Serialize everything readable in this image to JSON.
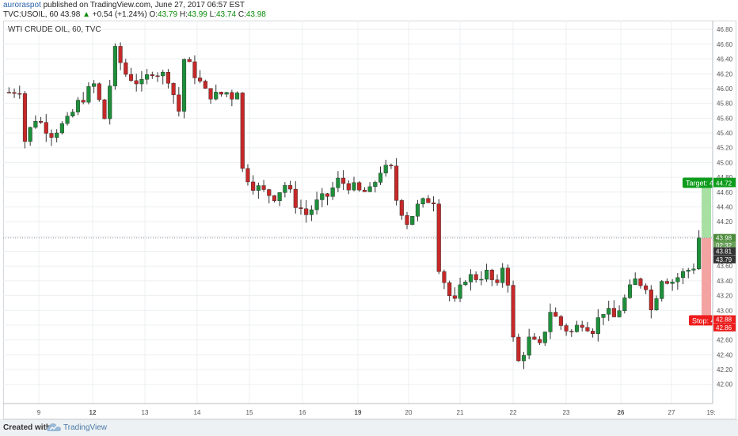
{
  "header": {
    "author": "auroraspot",
    "published_text": " published on TradingView.com, June 27, 2017 06:57 EST",
    "symbol": "TVC:USOIL, 60",
    "last": "43.98",
    "change_icon": "triangle-up-icon",
    "change": "+0.54 (+1.24%)",
    "open_label": "O:",
    "open": "43.79",
    "high_label": "H:",
    "high": "43.99",
    "low_label": "L:",
    "low": "43.74",
    "close_label": "C:",
    "close": "43.98"
  },
  "footer": {
    "created_with": "Created with",
    "brand": "TradingView",
    "logo_icon": "tradingview-cloud-icon"
  },
  "colors": {
    "up": "#1e8f3a",
    "down": "#c62828",
    "target_fill": "#a8e0a4",
    "stop_fill": "#f4a3a3",
    "target_label": "#0d9c1b",
    "stop_label": "#ee1c1c",
    "price_label": "#4b8b3b",
    "dark_label": "#333333"
  },
  "chart_data": {
    "type": "candlestick",
    "title": "WTI CRUDE OIL, 60, TVC",
    "x_ticks": [
      "9",
      "12",
      "13",
      "14",
      "15",
      "16",
      "19",
      "20",
      "21",
      "22",
      "23",
      "26",
      "27",
      "19:"
    ],
    "bold_ticks": [
      "12",
      "19",
      "26"
    ],
    "y_ticks": [
      42.0,
      42.2,
      42.4,
      42.6,
      42.8,
      43.0,
      43.2,
      43.4,
      43.6,
      43.8,
      44.0,
      44.2,
      44.4,
      44.6,
      44.8,
      45.0,
      45.2,
      45.4,
      45.6,
      45.8,
      46.0,
      46.2,
      46.4,
      46.6,
      46.8
    ],
    "ylim": [
      41.74,
      46.92
    ],
    "grid": true,
    "session_path": [
      [
        0,
        45.95
      ],
      [
        2,
        46.0
      ],
      [
        3,
        45.3
      ],
      [
        5,
        45.6
      ],
      [
        8,
        45.4
      ],
      [
        11,
        45.55
      ],
      [
        13,
        45.8
      ],
      [
        16,
        46.05
      ],
      [
        18,
        45.6
      ],
      [
        20,
        46.5
      ],
      [
        22,
        46.2
      ],
      [
        25,
        46.05
      ],
      [
        27,
        46.25
      ],
      [
        30,
        46.15
      ],
      [
        32,
        45.7
      ],
      [
        33,
        46.4
      ],
      [
        35,
        46.2
      ],
      [
        37,
        45.95
      ],
      [
        39,
        45.9
      ],
      [
        41,
        45.95
      ],
      [
        42,
        45.9
      ],
      [
        43,
        46.0
      ],
      [
        44,
        44.9
      ],
      [
        46,
        44.7
      ],
      [
        48,
        44.6
      ],
      [
        50,
        44.55
      ],
      [
        52,
        44.7
      ],
      [
        54,
        44.45
      ],
      [
        56,
        44.3
      ],
      [
        58,
        44.45
      ],
      [
        60,
        44.55
      ],
      [
        62,
        44.75
      ],
      [
        64,
        44.7
      ],
      [
        66,
        44.6
      ],
      [
        68,
        44.6
      ],
      [
        70,
        44.9
      ],
      [
        72,
        44.9
      ],
      [
        73,
        44.5
      ],
      [
        75,
        44.2
      ],
      [
        77,
        44.4
      ],
      [
        79,
        44.5
      ],
      [
        80,
        44.5
      ],
      [
        81,
        43.6
      ],
      [
        83,
        43.2
      ],
      [
        84,
        43.1
      ],
      [
        86,
        43.45
      ],
      [
        88,
        43.45
      ],
      [
        90,
        43.5
      ],
      [
        92,
        43.3
      ],
      [
        93,
        43.6
      ],
      [
        94,
        43.4
      ],
      [
        95,
        42.6
      ],
      [
        96,
        42.3
      ],
      [
        98,
        42.6
      ],
      [
        100,
        42.5
      ],
      [
        102,
        43.0
      ],
      [
        104,
        42.8
      ],
      [
        106,
        42.7
      ],
      [
        108,
        42.85
      ],
      [
        110,
        42.75
      ],
      [
        112,
        43.0
      ],
      [
        114,
        42.9
      ],
      [
        116,
        43.15
      ],
      [
        118,
        43.4
      ],
      [
        120,
        43.35
      ],
      [
        121,
        43.0
      ],
      [
        123,
        43.45
      ],
      [
        125,
        43.4
      ],
      [
        127,
        43.5
      ],
      [
        129,
        43.6
      ],
      [
        130,
        43.98
      ]
    ],
    "candle_count": 131,
    "current_price": 43.98,
    "price_labels": [
      {
        "value": "44.74",
        "price": 44.74,
        "style": "target"
      },
      {
        "value": "44.72",
        "price": 44.72,
        "style": "target"
      },
      {
        "value": "43.98",
        "price": 43.98,
        "style": "price"
      },
      {
        "value": "02:32",
        "price": 43.88,
        "style": "timer"
      },
      {
        "value": "43.81",
        "price": 43.8,
        "style": "dark"
      },
      {
        "value": "43.79",
        "price": 43.69,
        "style": "dark"
      },
      {
        "value": "42.88",
        "price": 42.88,
        "style": "stop"
      },
      {
        "value": "42.86",
        "price": 42.77,
        "style": "stop"
      }
    ],
    "target": {
      "label": "Target: 44.72",
      "price": 44.72
    },
    "stop": {
      "label": "Stop: 42.86",
      "price": 42.86
    }
  }
}
